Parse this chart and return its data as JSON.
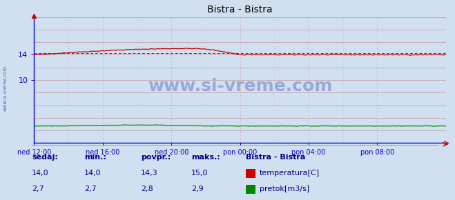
{
  "title": "Bistra - Bistra",
  "title_color": "#000080",
  "bg_color": "#d0e0f0",
  "plot_bg_color": "#d0e0f0",
  "spine_color": "#0000cc",
  "axis_tick_color": "#0000cc",
  "grid_color_solid": "#c08080",
  "grid_color_dashed": "#d4a0a0",
  "x_labels": [
    "ned 12:00",
    "ned 16:00",
    "ned 20:00",
    "pon 00:00",
    "pon 04:00",
    "pon 08:00"
  ],
  "ylim": [
    0,
    20
  ],
  "yticks_shown": [
    10,
    14
  ],
  "temp_color": "#cc0000",
  "flow_color": "#008800",
  "avg_line_color": "#cc0000",
  "avg_temp": 14.3,
  "watermark_text": "www.si-vreme.com",
  "watermark_color": "#000099",
  "watermark_alpha": 0.25,
  "sidebar_text": "www.si-vreme.com",
  "sidebar_color": "#2255aa",
  "legend_title": "Bistra - Bistra",
  "legend_color": "#000080",
  "table_headers": [
    "sedaj:",
    "min.:",
    "povpr.:",
    "maks.:"
  ],
  "table_temp": [
    "14,0",
    "14,0",
    "14,3",
    "15,0"
  ],
  "table_flow": [
    "2,7",
    "2,7",
    "2,8",
    "2,9"
  ],
  "table_color": "#000080",
  "legend_label_temp": "temperatura[C]",
  "legend_label_flow": "pretok[m3/s]",
  "n_points": 288,
  "temp_min": 14.0,
  "temp_max": 15.0,
  "flow_min": 2.7,
  "flow_max": 2.9
}
